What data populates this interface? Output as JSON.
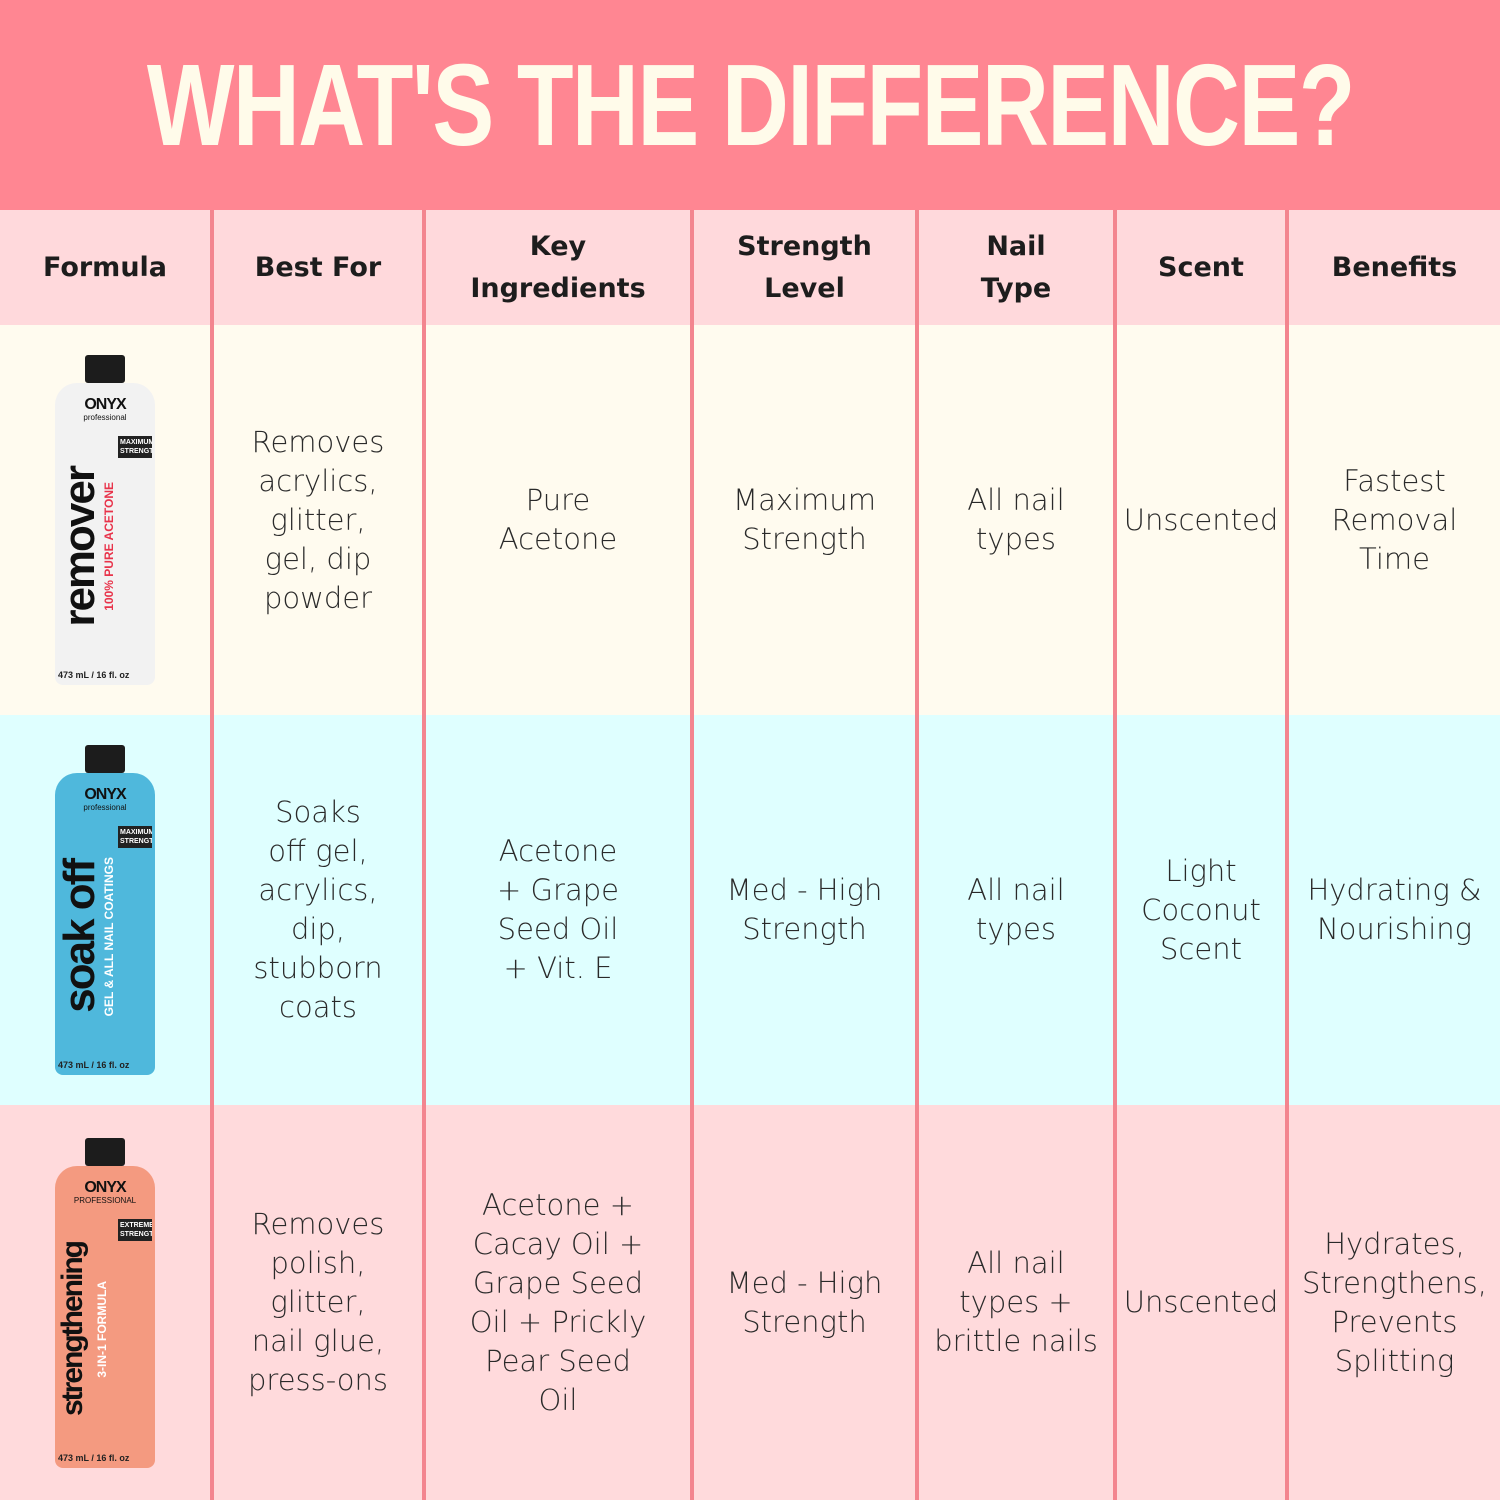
{
  "title": "WHAT'S THE DIFFERENCE?",
  "colors": {
    "banner": "#FF8692",
    "header_row": "#FFD9DC",
    "row_remover": "#FFFBEF",
    "row_soak_off": "#DFFFFF",
    "row_strengthening": "#FFDADC",
    "divider": "#F3858F",
    "title_text": "#FFFBEA"
  },
  "headers": [
    "Formula",
    "Best For",
    "Key\nIngredients",
    "Strength\nLevel",
    "Nail\nType",
    "Scent",
    "Benefits"
  ],
  "rows": [
    {
      "bottle": {
        "brand": "ONYX",
        "brand_sub": "professional",
        "name": "remover",
        "tagline": "100% PURE ACETONE",
        "badge": "MAXIMUM STRENGTH",
        "volume": "473 mL / 16 fl. oz",
        "color": "#F2F2F2",
        "tagline_color": "#E8334A"
      },
      "best_for": "Removes\nacrylics,\nglitter,\ngel, dip\npowder",
      "key_ingredients": "Pure\nAcetone",
      "strength": "Maximum\nStrength",
      "nail_type": "All nail\ntypes",
      "scent": "Unscented",
      "benefits": "Fastest\nRemoval\nTime"
    },
    {
      "bottle": {
        "brand": "ONYX",
        "brand_sub": "professional",
        "name": "soak off",
        "tagline": "GEL & ALL NAIL COATINGS",
        "badge": "MAXIMUM STRENGTH",
        "volume": "473 mL / 16 fl. oz",
        "color": "#4FB8DC",
        "tagline_color": "#ffffff"
      },
      "best_for": "Soaks\noff gel,\nacrylics,\ndip,\nstubborn\ncoats",
      "key_ingredients": "Acetone\n+ Grape\nSeed Oil\n+ Vit. E",
      "strength": "Med - High\nStrength",
      "nail_type": "All nail\ntypes",
      "scent": "Light\nCoconut\nScent",
      "benefits": "Hydrating &\nNourishing"
    },
    {
      "bottle": {
        "brand": "ONYX",
        "brand_sub": "PROFESSIONAL",
        "name": "strengthening",
        "tagline": "3-IN-1 FORMULA",
        "badge": "EXTREME STRENGTH",
        "volume": "473 mL / 16 fl. oz",
        "color": "#F49A80",
        "tagline_color": "#ffffff"
      },
      "best_for": "Removes\npolish,\nglitter,\nnail glue,\npress-ons",
      "key_ingredients": "Acetone +\nCacay Oil +\nGrape Seed\nOil + Prickly\nPear Seed\nOil",
      "strength": "Med - High\nStrength",
      "nail_type": "All nail\ntypes +\nbrittle nails",
      "scent": "Unscented",
      "benefits": "Hydrates,\nStrengthens,\nPrevents\nSplitting"
    }
  ]
}
